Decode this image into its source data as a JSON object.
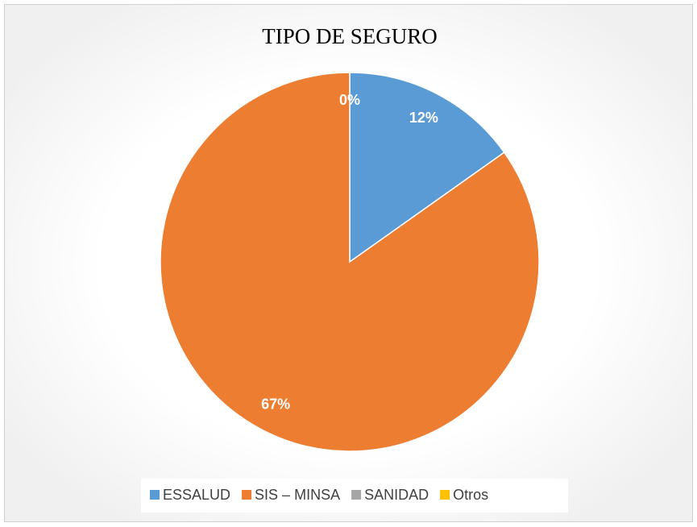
{
  "chart_data": {
    "type": "pie",
    "title": "TIPO DE SEGURO",
    "categories": [
      "ESSALUD",
      "SIS – MINSA",
      "SANIDAD",
      "Otros"
    ],
    "values": [
      12,
      67,
      0,
      0
    ],
    "value_labels": [
      "12%",
      "67%",
      "0%",
      null
    ],
    "colors": [
      "#5b9bd5",
      "#ed7d31",
      "#a5a5a5",
      "#ffc000"
    ],
    "legend": "bottom"
  }
}
